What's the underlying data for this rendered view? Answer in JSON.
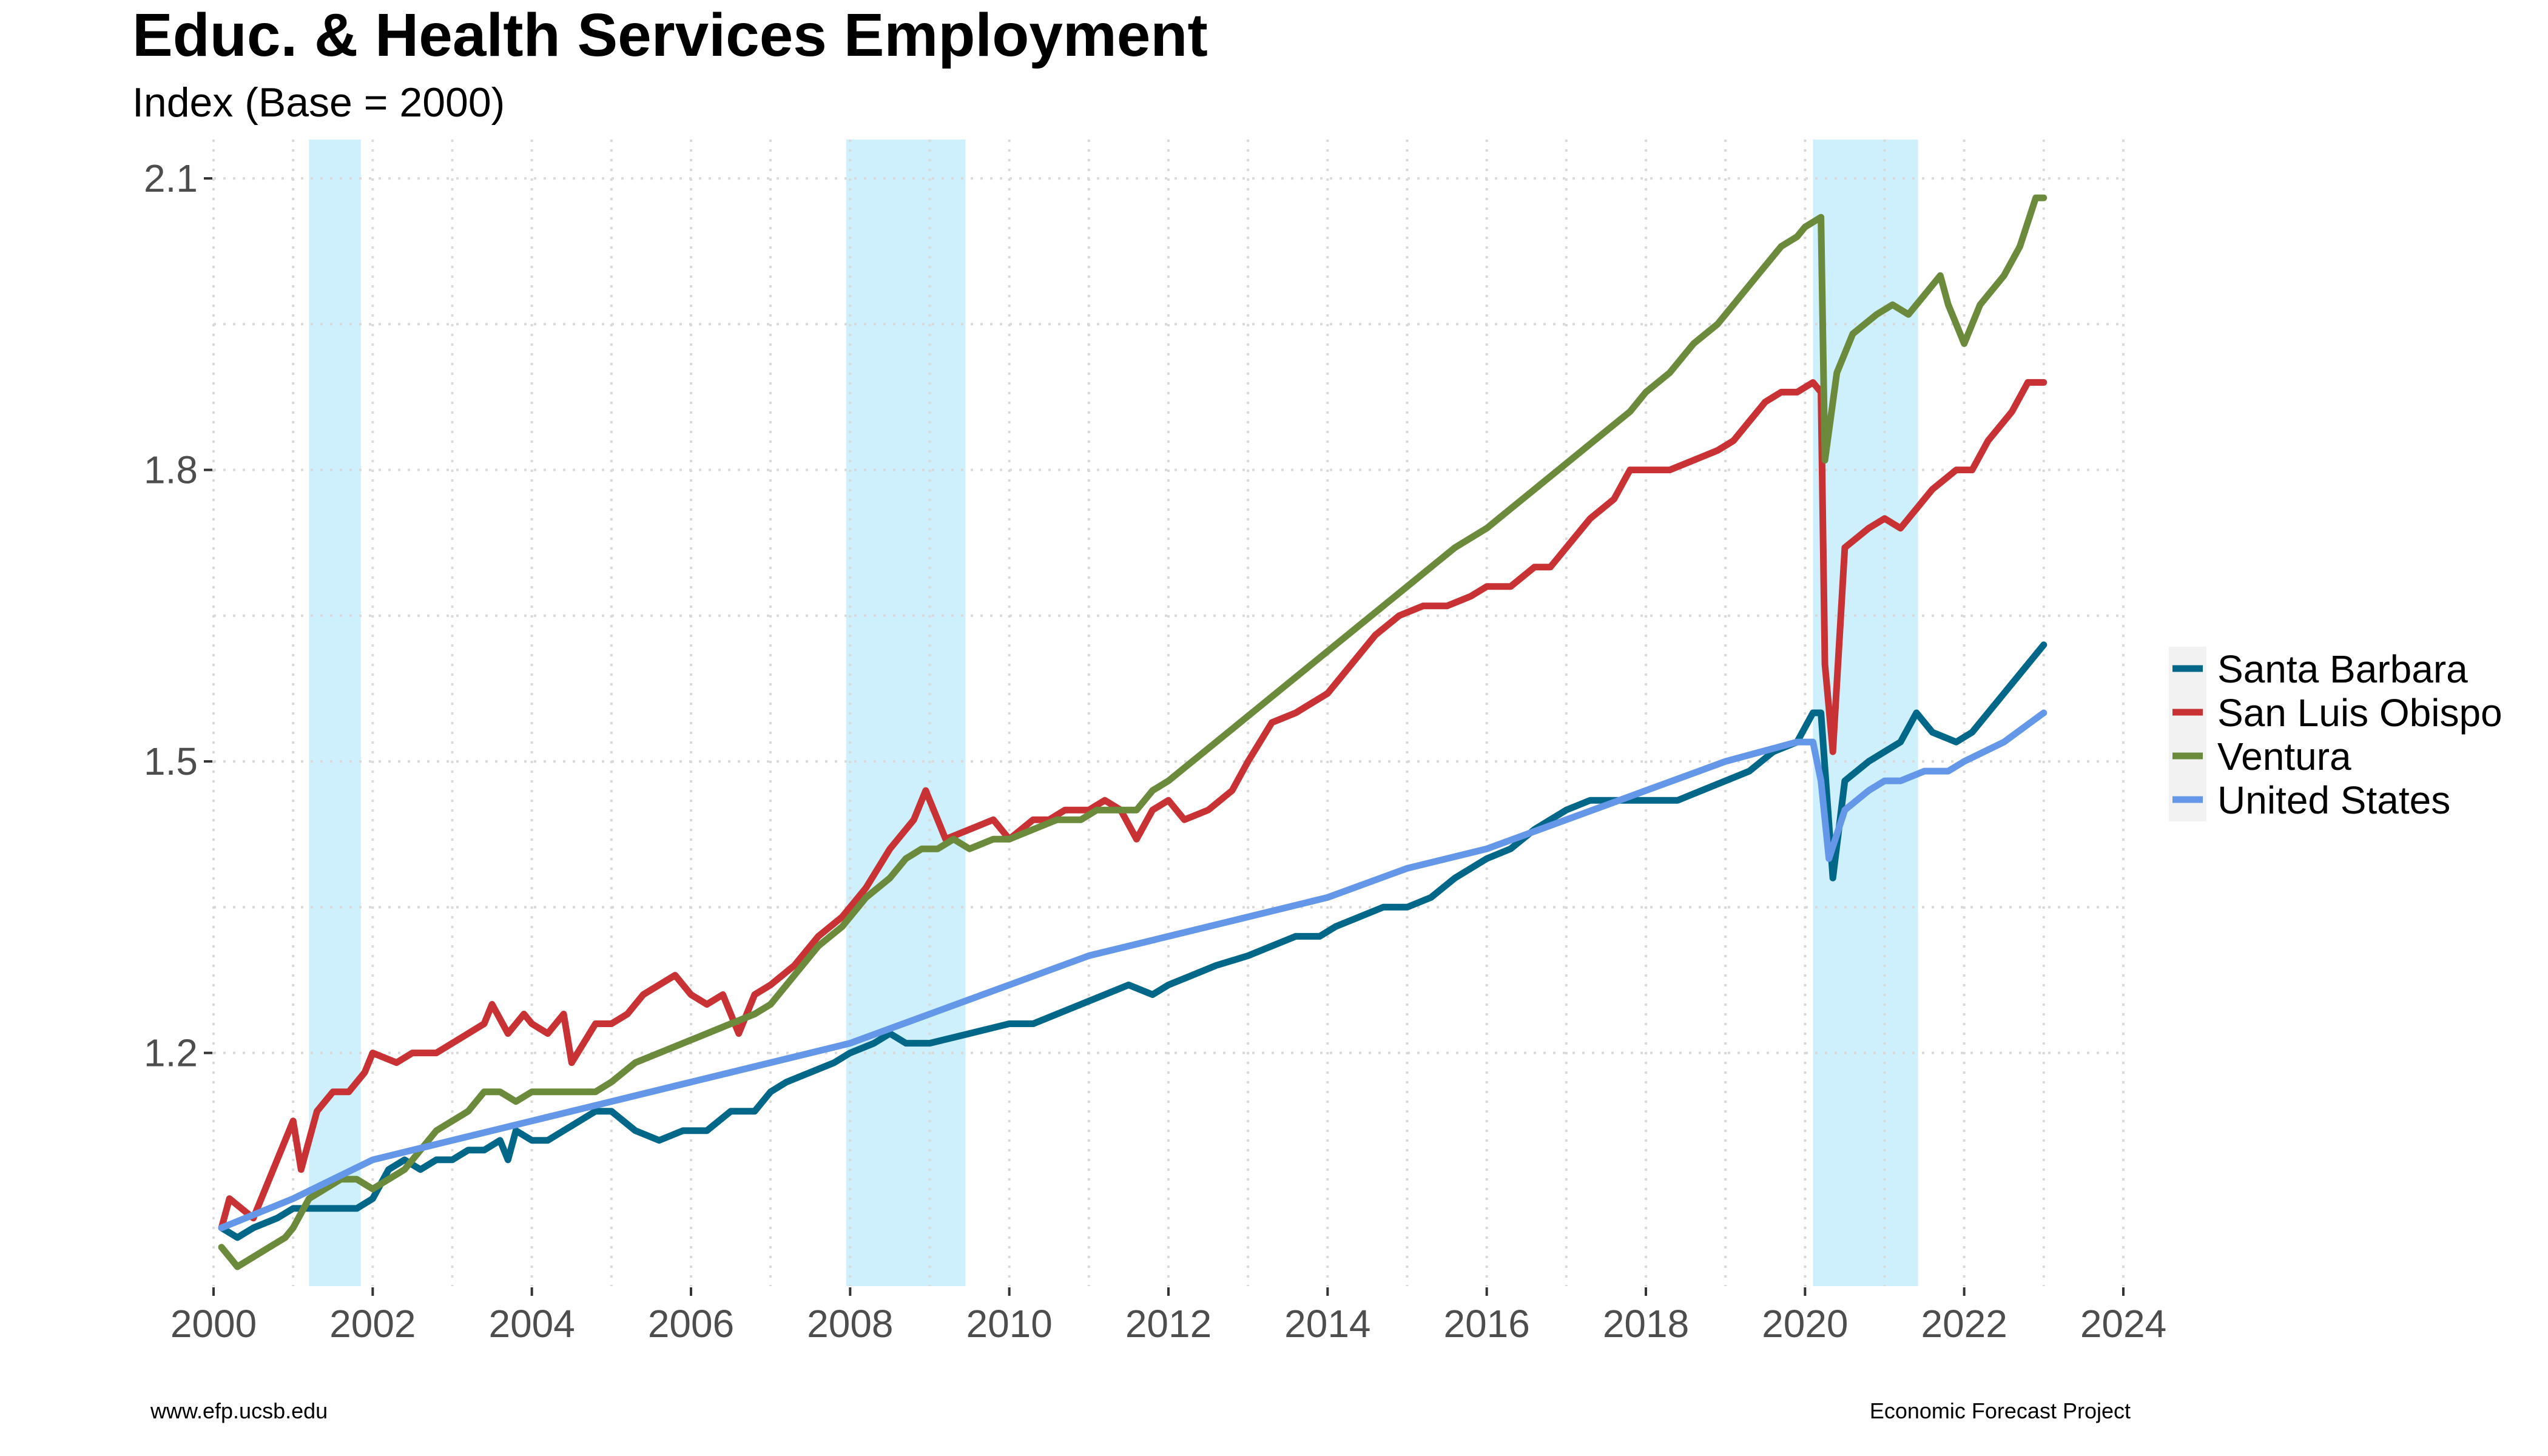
{
  "chart_data": {
    "type": "line",
    "title": "Educ. & Health Services Employment",
    "subtitle": "Index (Base = 2000)",
    "xlabel": "",
    "ylabel": "",
    "xlim": [
      2000,
      2024
    ],
    "ylim": [
      0.96,
      2.14
    ],
    "x_ticks": [
      {
        "value": 2000,
        "label": "2000"
      },
      {
        "value": 2002,
        "label": "2002"
      },
      {
        "value": 2004,
        "label": "2004"
      },
      {
        "value": 2006,
        "label": "2006"
      },
      {
        "value": 2008,
        "label": "2008"
      },
      {
        "value": 2010,
        "label": "2010"
      },
      {
        "value": 2012,
        "label": "2012"
      },
      {
        "value": 2014,
        "label": "2014"
      },
      {
        "value": 2016,
        "label": "2016"
      },
      {
        "value": 2018,
        "label": "2018"
      },
      {
        "value": 2020,
        "label": "2020"
      },
      {
        "value": 2022,
        "label": "2022"
      },
      {
        "value": 2024,
        "label": "2024"
      }
    ],
    "y_ticks": [
      {
        "value": 1.2,
        "label": "1.2"
      },
      {
        "value": 1.5,
        "label": "1.5"
      },
      {
        "value": 1.8,
        "label": "1.8"
      },
      {
        "value": 2.1,
        "label": "2.1"
      }
    ],
    "grid": true,
    "legend_position": "right",
    "recessions": [
      {
        "start": 2001.2,
        "end": 2001.85
      },
      {
        "start": 2007.95,
        "end": 2009.45
      },
      {
        "start": 2020.1,
        "end": 2021.42
      }
    ],
    "series": [
      {
        "name": "Santa Barbara",
        "color": "#006788",
        "x": [
          2000.1,
          2000.3,
          2000.5,
          2000.8,
          2001.0,
          2001.2,
          2001.5,
          2001.8,
          2002.0,
          2002.2,
          2002.4,
          2002.6,
          2002.8,
          2003.0,
          2003.2,
          2003.4,
          2003.6,
          2003.7,
          2003.8,
          2004.0,
          2004.2,
          2004.4,
          2004.6,
          2004.8,
          2005.0,
          2005.3,
          2005.6,
          2005.9,
          2006.2,
          2006.5,
          2006.8,
          2007.0,
          2007.2,
          2007.5,
          2007.8,
          2008.0,
          2008.3,
          2008.5,
          2008.7,
          2009.0,
          2009.5,
          2010.0,
          2010.3,
          2010.6,
          2010.9,
          2011.2,
          2011.5,
          2011.8,
          2012.0,
          2012.3,
          2012.6,
          2013.0,
          2013.3,
          2013.6,
          2013.9,
          2014.1,
          2014.4,
          2014.7,
          2015.0,
          2015.3,
          2015.6,
          2016.0,
          2016.3,
          2016.6,
          2017.0,
          2017.3,
          2017.6,
          2018.0,
          2018.4,
          2018.7,
          2019.0,
          2019.3,
          2019.6,
          2019.9,
          2020.1,
          2020.2,
          2020.35,
          2020.5,
          2020.8,
          2021.0,
          2021.2,
          2021.4,
          2021.6,
          2021.9,
          2022.1,
          2022.3,
          2022.6,
          2022.9,
          2023.0
        ],
        "values": [
          1.02,
          1.01,
          1.02,
          1.03,
          1.04,
          1.04,
          1.04,
          1.04,
          1.05,
          1.08,
          1.09,
          1.08,
          1.09,
          1.09,
          1.1,
          1.1,
          1.11,
          1.09,
          1.12,
          1.11,
          1.11,
          1.12,
          1.13,
          1.14,
          1.14,
          1.12,
          1.11,
          1.12,
          1.12,
          1.14,
          1.14,
          1.16,
          1.17,
          1.18,
          1.19,
          1.2,
          1.21,
          1.22,
          1.21,
          1.21,
          1.22,
          1.23,
          1.23,
          1.24,
          1.25,
          1.26,
          1.27,
          1.26,
          1.27,
          1.28,
          1.29,
          1.3,
          1.31,
          1.32,
          1.32,
          1.33,
          1.34,
          1.35,
          1.35,
          1.36,
          1.38,
          1.4,
          1.41,
          1.43,
          1.45,
          1.46,
          1.46,
          1.46,
          1.46,
          1.47,
          1.48,
          1.49,
          1.51,
          1.52,
          1.55,
          1.55,
          1.38,
          1.48,
          1.5,
          1.51,
          1.52,
          1.55,
          1.53,
          1.52,
          1.53,
          1.55,
          1.58,
          1.61,
          1.62
        ]
      },
      {
        "name": "San Luis Obispo",
        "color": "#c93234",
        "x": [
          2000.1,
          2000.2,
          2000.35,
          2000.5,
          2000.7,
          2000.8,
          2001.0,
          2001.1,
          2001.3,
          2001.5,
          2001.7,
          2001.9,
          2002.0,
          2002.3,
          2002.5,
          2002.8,
          2003.0,
          2003.2,
          2003.4,
          2003.5,
          2003.7,
          2003.9,
          2004.0,
          2004.2,
          2004.4,
          2004.5,
          2004.8,
          2005.0,
          2005.2,
          2005.4,
          2005.6,
          2005.8,
          2006.0,
          2006.2,
          2006.4,
          2006.6,
          2006.8,
          2007.0,
          2007.3,
          2007.6,
          2007.9,
          2008.2,
          2008.5,
          2008.8,
          2008.95,
          2009.2,
          2009.5,
          2009.8,
          2010.0,
          2010.3,
          2010.5,
          2010.7,
          2011.0,
          2011.2,
          2011.4,
          2011.6,
          2011.8,
          2012.0,
          2012.2,
          2012.5,
          2012.8,
          2013.0,
          2013.3,
          2013.6,
          2013.8,
          2014.0,
          2014.3,
          2014.6,
          2014.9,
          2015.2,
          2015.5,
          2015.8,
          2016.0,
          2016.3,
          2016.6,
          2016.8,
          2017.0,
          2017.3,
          2017.6,
          2017.8,
          2018.0,
          2018.3,
          2018.6,
          2018.9,
          2019.1,
          2019.3,
          2019.5,
          2019.7,
          2019.9,
          2020.1,
          2020.2,
          2020.25,
          2020.35,
          2020.5,
          2020.8,
          2021.0,
          2021.2,
          2021.4,
          2021.6,
          2021.9,
          2022.1,
          2022.3,
          2022.6,
          2022.8,
          2023.0
        ],
        "values": [
          1.02,
          1.05,
          1.04,
          1.03,
          1.07,
          1.09,
          1.13,
          1.08,
          1.14,
          1.16,
          1.16,
          1.18,
          1.2,
          1.19,
          1.2,
          1.2,
          1.21,
          1.22,
          1.23,
          1.25,
          1.22,
          1.24,
          1.23,
          1.22,
          1.24,
          1.19,
          1.23,
          1.23,
          1.24,
          1.26,
          1.27,
          1.28,
          1.26,
          1.25,
          1.26,
          1.22,
          1.26,
          1.27,
          1.29,
          1.32,
          1.34,
          1.37,
          1.41,
          1.44,
          1.47,
          1.42,
          1.43,
          1.44,
          1.42,
          1.44,
          1.44,
          1.45,
          1.45,
          1.46,
          1.45,
          1.42,
          1.45,
          1.46,
          1.44,
          1.45,
          1.47,
          1.5,
          1.54,
          1.55,
          1.56,
          1.57,
          1.6,
          1.63,
          1.65,
          1.66,
          1.66,
          1.67,
          1.68,
          1.68,
          1.7,
          1.7,
          1.72,
          1.75,
          1.77,
          1.8,
          1.8,
          1.8,
          1.81,
          1.82,
          1.83,
          1.85,
          1.87,
          1.88,
          1.88,
          1.89,
          1.88,
          1.6,
          1.51,
          1.72,
          1.74,
          1.75,
          1.74,
          1.76,
          1.78,
          1.8,
          1.8,
          1.83,
          1.86,
          1.89,
          1.89
        ]
      },
      {
        "name": "Ventura",
        "color": "#6b8a3b",
        "x": [
          2000.1,
          2000.3,
          2000.5,
          2000.7,
          2000.9,
          2001.0,
          2001.2,
          2001.4,
          2001.6,
          2001.8,
          2002.0,
          2002.2,
          2002.4,
          2002.6,
          2002.8,
          2003.0,
          2003.2,
          2003.4,
          2003.6,
          2003.8,
          2004.0,
          2004.2,
          2004.5,
          2004.8,
          2005.0,
          2005.3,
          2005.6,
          2005.9,
          2006.2,
          2006.5,
          2006.8,
          2007.0,
          2007.3,
          2007.6,
          2007.9,
          2008.2,
          2008.5,
          2008.7,
          2008.9,
          2009.1,
          2009.3,
          2009.5,
          2009.8,
          2010.0,
          2010.3,
          2010.6,
          2010.9,
          2011.1,
          2011.4,
          2011.6,
          2011.8,
          2012.0,
          2012.3,
          2012.6,
          2012.9,
          2013.2,
          2013.5,
          2013.8,
          2014.1,
          2014.4,
          2014.7,
          2015.0,
          2015.3,
          2015.6,
          2016.0,
          2016.3,
          2016.6,
          2016.9,
          2017.2,
          2017.5,
          2017.8,
          2018.0,
          2018.3,
          2018.6,
          2018.9,
          2019.1,
          2019.4,
          2019.7,
          2019.9,
          2020.0,
          2020.2,
          2020.25,
          2020.4,
          2020.6,
          2020.9,
          2021.1,
          2021.3,
          2021.5,
          2021.7,
          2021.8,
          2021.9,
          2022.0,
          2022.2,
          2022.5,
          2022.7,
          2022.9,
          2023.0
        ],
        "values": [
          1.0,
          0.98,
          0.99,
          1.0,
          1.01,
          1.02,
          1.05,
          1.06,
          1.07,
          1.07,
          1.06,
          1.07,
          1.08,
          1.1,
          1.12,
          1.13,
          1.14,
          1.16,
          1.16,
          1.15,
          1.16,
          1.16,
          1.16,
          1.16,
          1.17,
          1.19,
          1.2,
          1.21,
          1.22,
          1.23,
          1.24,
          1.25,
          1.28,
          1.31,
          1.33,
          1.36,
          1.38,
          1.4,
          1.41,
          1.41,
          1.42,
          1.41,
          1.42,
          1.42,
          1.43,
          1.44,
          1.44,
          1.45,
          1.45,
          1.45,
          1.47,
          1.48,
          1.5,
          1.52,
          1.54,
          1.56,
          1.58,
          1.6,
          1.62,
          1.64,
          1.66,
          1.68,
          1.7,
          1.72,
          1.74,
          1.76,
          1.78,
          1.8,
          1.82,
          1.84,
          1.86,
          1.88,
          1.9,
          1.93,
          1.95,
          1.97,
          2.0,
          2.03,
          2.04,
          2.05,
          2.06,
          1.81,
          1.9,
          1.94,
          1.96,
          1.97,
          1.96,
          1.98,
          2.0,
          1.97,
          1.95,
          1.93,
          1.97,
          2.0,
          2.03,
          2.08,
          2.08
        ]
      },
      {
        "name": "United States",
        "color": "#6497e8",
        "x": [
          2000.1,
          2001.0,
          2002.0,
          2003.0,
          2004.0,
          2005.0,
          2006.0,
          2007.0,
          2008.0,
          2009.0,
          2010.0,
          2011.0,
          2012.0,
          2013.0,
          2014.0,
          2015.0,
          2016.0,
          2017.0,
          2018.0,
          2019.0,
          2019.9,
          2020.1,
          2020.2,
          2020.3,
          2020.5,
          2020.8,
          2021.0,
          2021.2,
          2021.5,
          2021.8,
          2022.0,
          2022.5,
          2023.0
        ],
        "values": [
          1.02,
          1.05,
          1.09,
          1.11,
          1.13,
          1.15,
          1.17,
          1.19,
          1.21,
          1.24,
          1.27,
          1.3,
          1.32,
          1.34,
          1.36,
          1.39,
          1.41,
          1.44,
          1.47,
          1.5,
          1.52,
          1.52,
          1.48,
          1.4,
          1.45,
          1.47,
          1.48,
          1.48,
          1.49,
          1.49,
          1.5,
          1.52,
          1.55
        ]
      }
    ]
  },
  "footer": {
    "left": "www.efp.ucsb.edu",
    "right": "Economic Forecast Project"
  }
}
